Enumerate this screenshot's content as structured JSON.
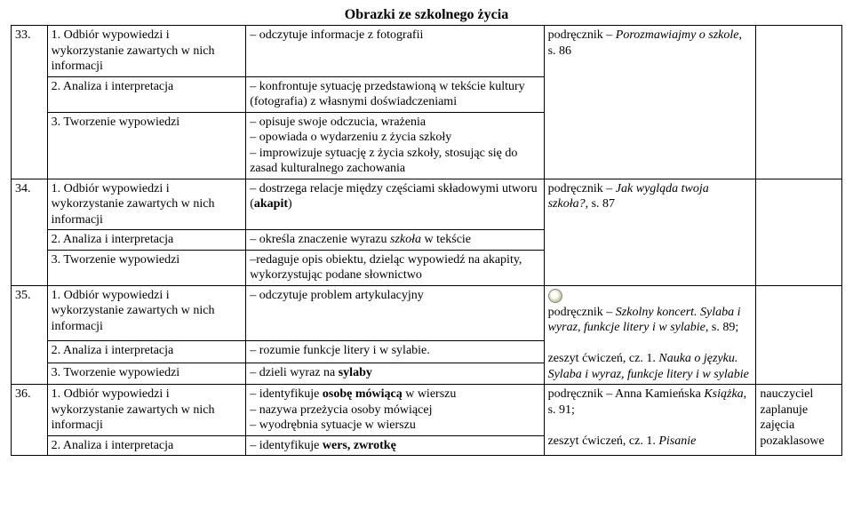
{
  "title": "Obrazki ze szkolnego życia",
  "rows": [
    {
      "num": "33.",
      "cells": [
        {
          "col2": "1. Odbiór wypowiedzi i wykorzystanie zawartych w nich informacji",
          "col3": "– odczytuje informacje z fotografii"
        },
        {
          "col2": "2. Analiza i interpretacja",
          "col3": "– konfrontuje sytuację przedstawioną w tekście kultury (fotografia) z własnymi doświadczeniami"
        },
        {
          "col2": "3. Tworzenie wypowiedzi",
          "col3": "– opisuje swoje odczucia, wrażenia\n– opowiada o wydarzeniu z życia szkoły\n– improwizuje sytuację z życia szkoły, stosując się do zasad kulturalnego zachowania"
        }
      ],
      "col4_pre": "podręcznik – ",
      "col4_em": "Porozmawiajmy o szkole",
      "col4_post": ", s. 86",
      "col5": ""
    },
    {
      "num": "34.",
      "cells": [
        {
          "col2": "1. Odbiór wypowiedzi i wykorzystanie zawartych w nich informacji",
          "col3_pre": "– dostrzega relacje między częściami składowymi utworu (",
          "col3_b": "akapit",
          "col3_post": ")"
        },
        {
          "col2": "2. Analiza i interpretacja",
          "col3_pre": "– określa znaczenie wyrazu ",
          "col3_em": "szkoła",
          "col3_post": " w tekście"
        },
        {
          "col2": "3. Tworzenie wypowiedzi",
          "col3": "–redaguje opis obiektu, dzieląc wypowiedź na akapity, wykorzystując podane słownictwo"
        }
      ],
      "col4_pre": "podręcznik – ",
      "col4_em": "Jak wygląda twoja szkoła?",
      "col4_post": ", s. 87",
      "col5": ""
    },
    {
      "num": "35.",
      "cells": [
        {
          "col2": "1. Odbiór wypowiedzi i wykorzystanie zawartych w nich informacji",
          "col3": "– odczytuje problem artykulacyjny"
        },
        {
          "col2": "2. Analiza i interpretacja",
          "col3": "– rozumie funkcje litery i w sylabie."
        },
        {
          "col2": "3. Tworzenie wypowiedzi",
          "col3_pre": "– dzieli wyraz na ",
          "col3_b": "sylaby",
          "col3_post": ""
        }
      ],
      "col4_icon": true,
      "col4_line1_pre": "podręcznik – ",
      "col4_line1_em": "Szkolny koncert. Sylaba i wyraz, funkcje litery i w sylabie",
      "col4_line1_post": ", s. 89;",
      "col4_line2_pre": "zeszyt ćwiczeń, cz. 1. ",
      "col4_line2_em": "Nauka o języku. Sylaba i wyraz, funkcje litery i w sylabie",
      "col4_line2_post": "",
      "col5": ""
    },
    {
      "num": "36.",
      "cells": [
        {
          "col2": "1. Odbiór wypowiedzi i wykorzystanie zawartych w nich informacji",
          "col3_parts": [
            {
              "t": "– identyfikuje "
            },
            {
              "b": "osobę mówiącą"
            },
            {
              "t": " w wierszu\n– nazywa przeżycia osoby mówiącej\n– wyodrębnia sytuacje w wierszu"
            }
          ]
        },
        {
          "col2": "2. Analiza i interpretacja",
          "col3_parts": [
            {
              "t": "– identyfikuje "
            },
            {
              "b": "wers, zwrotkę"
            }
          ]
        }
      ],
      "col4_line1_pre": "podręcznik – Anna Kamieńska ",
      "col4_line1_em": "Książka",
      "col4_line1_post": ", s. 91;",
      "col4_line2_pre": "zeszyt ćwiczeń, cz. 1. ",
      "col4_line2_em": "Pisanie",
      "col4_line2_post": "",
      "col5": "nauczyciel zaplanuje zajęcia pozaklasowe"
    }
  ]
}
